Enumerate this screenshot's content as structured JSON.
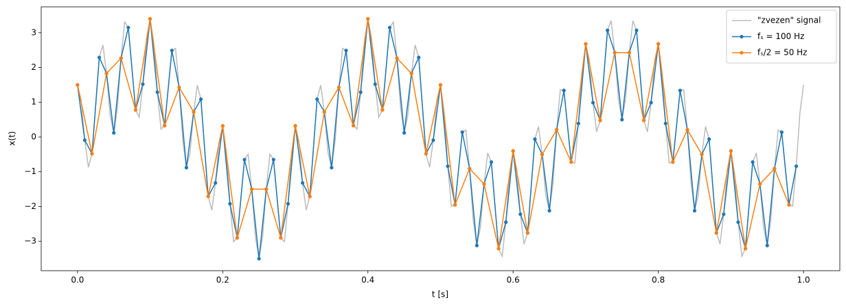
{
  "chart_data": {
    "type": "line",
    "xlabel": "t [s]",
    "ylabel": "x(t)",
    "xlim": [
      -0.05,
      1.05
    ],
    "ylim": [
      -3.845,
      3.745
    ],
    "xticks": [
      {
        "value": 0,
        "label": "0.0"
      },
      0.2,
      0.4,
      0.6,
      0.8,
      {
        "value": 1,
        "label": "1.0"
      }
    ],
    "yticks": [
      {
        "value": -3,
        "label": "−3"
      },
      {
        "value": -2,
        "label": "−2"
      },
      {
        "value": -1,
        "label": "−1"
      },
      0,
      1,
      2,
      3
    ],
    "legend": "upper right",
    "series": [
      {
        "name": "\"zvezen\" signal",
        "color": "#bbbbbb",
        "marker": false,
        "x": [
          0,
          0.005,
          0.01,
          0.015,
          0.02,
          0.025,
          0.03,
          0.035,
          0.04,
          0.045,
          0.05,
          0.055,
          0.06,
          0.065,
          0.07,
          0.075,
          0.08,
          0.085,
          0.09,
          0.095,
          0.1,
          0.105,
          0.11,
          0.115,
          0.12,
          0.125,
          0.13,
          0.135,
          0.14,
          0.145,
          0.15,
          0.155,
          0.16,
          0.165,
          0.17,
          0.175,
          0.18,
          0.185,
          0.19,
          0.195,
          0.2,
          0.205,
          0.21,
          0.215,
          0.22,
          0.225,
          0.23,
          0.235,
          0.24,
          0.245,
          0.25,
          0.255,
          0.26,
          0.265,
          0.27,
          0.275,
          0.28,
          0.285,
          0.29,
          0.295,
          0.3,
          0.305,
          0.31,
          0.315,
          0.32,
          0.325,
          0.33,
          0.335,
          0.34,
          0.345,
          0.35,
          0.355,
          0.36,
          0.365,
          0.37,
          0.375,
          0.38,
          0.385,
          0.39,
          0.395,
          0.4,
          0.405,
          0.41,
          0.415,
          0.42,
          0.425,
          0.43,
          0.435,
          0.44,
          0.445,
          0.45,
          0.455,
          0.46,
          0.465,
          0.47,
          0.475,
          0.48,
          0.485,
          0.49,
          0.495,
          0.5,
          0.505,
          0.51,
          0.515,
          0.52,
          0.525,
          0.53,
          0.535,
          0.54,
          0.545,
          0.55,
          0.555,
          0.56,
          0.565,
          0.57,
          0.575,
          0.58,
          0.585,
          0.59,
          0.595,
          0.6,
          0.605,
          0.61,
          0.615,
          0.62,
          0.625,
          0.63,
          0.635,
          0.64,
          0.645,
          0.65,
          0.655,
          0.66,
          0.665,
          0.67,
          0.675,
          0.68,
          0.685,
          0.69,
          0.695,
          0.7,
          0.705,
          0.71,
          0.715,
          0.72,
          0.725,
          0.73,
          0.735,
          0.74,
          0.745,
          0.75,
          0.755,
          0.76,
          0.765,
          0.77,
          0.775,
          0.78,
          0.785,
          0.79,
          0.795,
          0.8,
          0.805,
          0.81,
          0.815,
          0.82,
          0.825,
          0.83,
          0.835,
          0.84,
          0.845,
          0.85,
          0.855,
          0.86,
          0.865,
          0.87,
          0.875,
          0.88,
          0.885,
          0.89,
          0.895,
          0.9,
          0.905,
          0.91,
          0.915,
          0.92,
          0.925,
          0.93,
          0.935,
          0.94,
          0.945,
          0.95,
          0.955,
          0.96,
          0.965,
          0.97,
          0.975,
          0.98,
          0.985,
          0.99,
          0.995,
          1.0
        ],
        "values": [
          1.5,
          1.07,
          -0.09,
          -0.87,
          -0.48,
          0.91,
          2.29,
          2.65,
          1.83,
          0.62,
          0.12,
          0.84,
          2.27,
          3.31,
          3.15,
          1.98,
          0.78,
          0.57,
          1.52,
          2.83,
          3.4,
          2.72,
          1.29,
          0.23,
          0.33,
          1.41,
          2.49,
          2.55,
          1.43,
          -0.09,
          -0.88,
          -0.45,
          0.72,
          1.49,
          1.09,
          -0.31,
          -1.71,
          -2.1,
          -1.32,
          -0.14,
          0.32,
          -0.44,
          -1.92,
          -3.01,
          -2.9,
          -1.78,
          -0.65,
          -0.49,
          -1.5,
          -2.87,
          -3.5,
          -2.87,
          -1.5,
          -0.49,
          -0.65,
          -1.78,
          -2.9,
          -3.01,
          -1.92,
          -0.44,
          0.32,
          -0.14,
          -1.32,
          -2.1,
          -1.71,
          -0.31,
          1.09,
          1.49,
          0.72,
          -0.45,
          -0.88,
          -0.09,
          1.43,
          2.55,
          2.49,
          1.41,
          0.33,
          0.23,
          1.29,
          2.72,
          3.4,
          2.83,
          1.52,
          0.57,
          0.78,
          1.98,
          3.15,
          3.31,
          2.27,
          0.84,
          0.12,
          0.62,
          1.83,
          2.65,
          2.29,
          0.91,
          -0.48,
          -0.87,
          -0.09,
          1.07,
          1.5,
          0.69,
          -0.84,
          -1.99,
          -1.95,
          -0.91,
          0.14,
          0.2,
          -0.91,
          -2.38,
          -3.12,
          -2.6,
          -1.35,
          -0.46,
          -0.72,
          -1.98,
          -3.21,
          -3.43,
          -2.45,
          -1.07,
          -0.4,
          -0.95,
          -2.22,
          -3.08,
          -2.76,
          -1.41,
          -0.06,
          0.3,
          -0.5,
          -1.68,
          -2.12,
          -1.32,
          0.21,
          1.36,
          1.34,
          0.31,
          -0.72,
          -0.75,
          0.39,
          1.9,
          2.68,
          2.21,
          0.99,
          0.15,
          0.48,
          1.78,
          3.07,
          3.35,
          2.43,
          1.11,
          0.5,
          1.11,
          2.43,
          3.35,
          3.07,
          1.78,
          0.48,
          0.15,
          0.99,
          2.21,
          2.68,
          1.9,
          0.39,
          -0.75,
          -0.72,
          0.31,
          1.34,
          1.36,
          0.21,
          -1.32,
          -2.12,
          -1.68,
          -0.5,
          0.3,
          -0.06,
          -1.41,
          -2.76,
          -3.08,
          -2.22,
          -0.95,
          -0.4,
          -1.07,
          -2.45,
          -3.43,
          -3.21,
          -1.98,
          -0.72,
          -0.46,
          -1.35,
          -2.6,
          -3.12,
          -2.38,
          -0.91,
          0.2,
          0.14,
          -0.91,
          -1.95,
          -1.99,
          -0.84,
          0.69,
          1.5
        ]
      },
      {
        "name": "fₛ = 100 Hz",
        "color": "#1f77b4",
        "marker": true,
        "x": [
          0,
          0.01,
          0.02,
          0.03,
          0.04,
          0.05,
          0.06,
          0.07,
          0.08,
          0.09,
          0.1,
          0.11,
          0.12,
          0.13,
          0.14,
          0.15,
          0.16,
          0.17,
          0.18,
          0.19,
          0.2,
          0.21,
          0.22,
          0.23,
          0.24,
          0.25,
          0.26,
          0.27,
          0.28,
          0.29,
          0.3,
          0.31,
          0.32,
          0.33,
          0.34,
          0.35,
          0.36,
          0.37,
          0.38,
          0.39,
          0.4,
          0.41,
          0.42,
          0.43,
          0.44,
          0.45,
          0.46,
          0.47,
          0.48,
          0.49,
          0.5,
          0.51,
          0.52,
          0.53,
          0.54,
          0.55,
          0.56,
          0.57,
          0.58,
          0.59,
          0.6,
          0.61,
          0.62,
          0.63,
          0.64,
          0.65,
          0.66,
          0.67,
          0.68,
          0.69,
          0.7,
          0.71,
          0.72,
          0.73,
          0.74,
          0.75,
          0.76,
          0.77,
          0.78,
          0.79,
          0.8,
          0.81,
          0.82,
          0.83,
          0.84,
          0.85,
          0.86,
          0.87,
          0.88,
          0.89,
          0.9,
          0.91,
          0.92,
          0.93,
          0.94,
          0.95,
          0.96,
          0.97,
          0.98,
          0.99
        ],
        "values": [
          1.5,
          -0.09,
          -0.48,
          2.29,
          1.83,
          0.12,
          2.27,
          3.15,
          0.78,
          1.52,
          3.4,
          1.29,
          0.33,
          2.49,
          1.43,
          -0.88,
          0.72,
          1.09,
          -1.71,
          -1.32,
          0.32,
          -1.92,
          -2.9,
          -0.65,
          -1.5,
          -3.5,
          -1.5,
          -0.65,
          -2.9,
          -1.92,
          0.32,
          -1.32,
          -1.71,
          1.09,
          0.72,
          -0.88,
          1.43,
          2.49,
          0.33,
          1.29,
          3.4,
          1.52,
          0.78,
          3.15,
          2.27,
          0.12,
          1.83,
          2.29,
          -0.48,
          -0.09,
          1.5,
          -0.84,
          -1.95,
          0.14,
          -0.91,
          -3.12,
          -1.35,
          -0.72,
          -3.21,
          -2.45,
          -0.4,
          -2.22,
          -2.76,
          -0.06,
          -0.5,
          -2.12,
          0.21,
          1.34,
          -0.72,
          0.39,
          2.68,
          0.99,
          0.48,
          3.07,
          2.43,
          0.5,
          2.43,
          3.07,
          0.48,
          0.99,
          2.68,
          0.39,
          -0.72,
          1.34,
          0.21,
          -2.12,
          -0.5,
          -0.06,
          -2.76,
          -2.22,
          -0.4,
          -2.45,
          -3.21,
          -0.72,
          -1.35,
          -3.12,
          -0.91,
          0.14,
          -1.95,
          -0.84
        ]
      },
      {
        "name": "fₛ/2 = 50 Hz",
        "color": "#ff7f0e",
        "marker": true,
        "x": [
          0,
          0.02,
          0.04,
          0.06,
          0.08,
          0.1,
          0.12,
          0.14,
          0.16,
          0.18,
          0.2,
          0.22,
          0.24,
          0.26,
          0.28,
          0.3,
          0.32,
          0.34,
          0.36,
          0.38,
          0.4,
          0.42,
          0.44,
          0.46,
          0.48,
          0.5,
          0.52,
          0.54,
          0.56,
          0.58,
          0.6,
          0.62,
          0.64,
          0.66,
          0.68,
          0.7,
          0.72,
          0.74,
          0.76,
          0.78,
          0.8,
          0.82,
          0.84,
          0.86,
          0.88,
          0.9,
          0.92,
          0.94,
          0.96,
          0.98
        ],
        "values": [
          1.5,
          -0.48,
          1.83,
          2.27,
          0.78,
          3.4,
          0.33,
          1.43,
          0.72,
          -1.71,
          0.32,
          -2.9,
          -1.5,
          -1.5,
          -2.9,
          0.32,
          -1.71,
          0.72,
          1.43,
          0.33,
          3.4,
          0.78,
          2.27,
          1.83,
          -0.48,
          1.5,
          -1.95,
          -0.91,
          -1.35,
          -3.21,
          -0.4,
          -2.76,
          -0.5,
          0.21,
          -0.72,
          2.68,
          0.48,
          2.43,
          2.43,
          0.48,
          2.68,
          -0.72,
          0.21,
          -0.5,
          -2.76,
          -0.4,
          -3.21,
          -1.35,
          -0.91,
          -1.95
        ]
      }
    ]
  }
}
